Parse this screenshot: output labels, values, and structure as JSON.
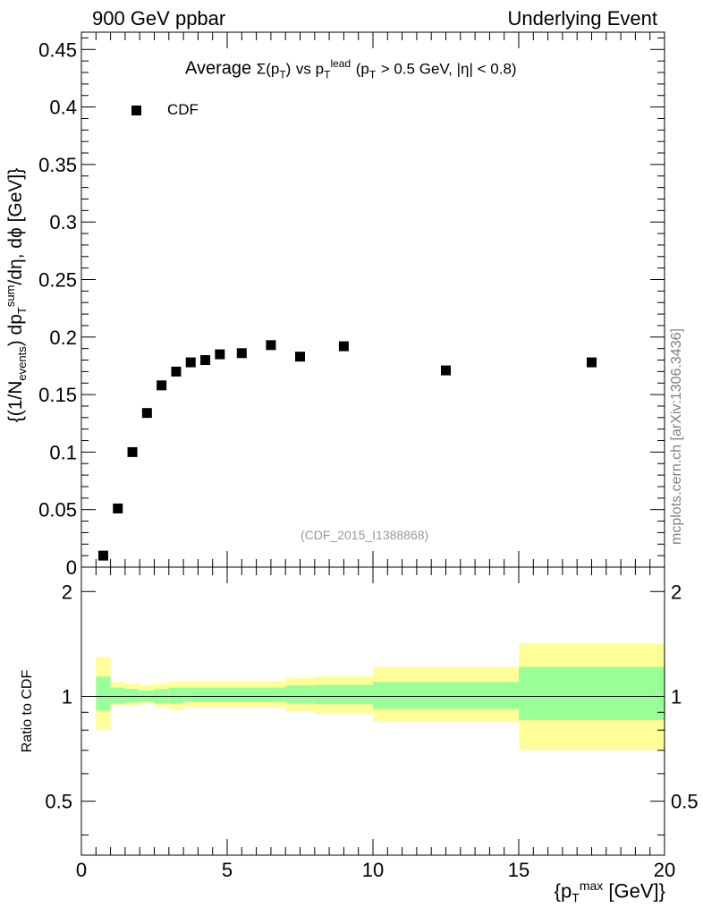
{
  "header": {
    "left": "900 GeV ppbar",
    "right": "Underlying Event"
  },
  "title": {
    "main": "Average",
    "sigma": "Σ(p",
    "sigma_sub": "T",
    "sigma_close": ")",
    "vs": "vs p",
    "vs_sub": "T",
    "vs_sup": "lead",
    "cut_open": "(p",
    "cut_sub": "T",
    "cut_rest": "> 0.5 GeV, |η| < 0.8)"
  },
  "ylabel": {
    "part1": "{(1/N",
    "part1_sub": "events",
    "part2": ") dp",
    "part2_sub": "T",
    "part2_sup": "sum",
    "part3": "/dη, dϕ [GeV]}"
  },
  "ratio_ylabel": "Ratio to CDF",
  "xlabel": {
    "open": "{p",
    "sub": "T",
    "sup": "max",
    "close": "[GeV]}"
  },
  "side_note": "mcplots.cern.ch [arXiv:1306.3436]",
  "analysis_tag": "(CDF_2015_I1388868)",
  "legend": {
    "label": "CDF"
  },
  "colors": {
    "marker": "#000000",
    "band_inner": "#99ff99",
    "band_outer": "#ffff99",
    "analysis_tag": "#999999",
    "side_note": "#808080"
  },
  "chart_data": [
    {
      "type": "scatter",
      "panel": "main",
      "x": [
        0.75,
        1.25,
        1.75,
        2.25,
        2.75,
        3.25,
        3.75,
        4.25,
        4.75,
        5.5,
        6.5,
        7.5,
        9.0,
        12.5,
        17.5
      ],
      "series": [
        {
          "name": "CDF",
          "values": [
            0.01,
            0.051,
            0.1,
            0.134,
            0.158,
            0.17,
            0.178,
            0.18,
            0.185,
            0.186,
            0.193,
            0.183,
            0.192,
            0.171,
            0.178
          ]
        }
      ],
      "xlim": [
        0,
        20
      ],
      "ylim": [
        0,
        0.465
      ],
      "yticks": [
        "0",
        "0.05",
        "0.1",
        "0.15",
        "0.2",
        "0.25",
        "0.3",
        "0.35",
        "0.4",
        "0.45"
      ],
      "legend": "top-left",
      "grid": false
    },
    {
      "type": "area",
      "panel": "ratio",
      "reference_line": 1,
      "scale": "log",
      "ylim": [
        0.35,
        2.35
      ],
      "xlim": [
        0,
        20
      ],
      "xticks": [
        "0",
        "5",
        "10",
        "15",
        "20"
      ],
      "yticks": [
        "0.5",
        "1",
        "2"
      ],
      "bins": [
        {
          "x": [
            0.5,
            1.0
          ],
          "inner": [
            0.91,
            1.14
          ],
          "outer": [
            0.8,
            1.3
          ]
        },
        {
          "x": [
            1.0,
            1.5
          ],
          "inner": [
            0.955,
            1.06
          ],
          "outer": [
            0.94,
            1.1
          ]
        },
        {
          "x": [
            1.5,
            2.0
          ],
          "inner": [
            0.96,
            1.05
          ],
          "outer": [
            0.945,
            1.09
          ]
        },
        {
          "x": [
            2.0,
            2.5
          ],
          "inner": [
            0.965,
            1.04
          ],
          "outer": [
            0.95,
            1.08
          ]
        },
        {
          "x": [
            2.5,
            3.0
          ],
          "inner": [
            0.955,
            1.05
          ],
          "outer": [
            0.93,
            1.09
          ]
        },
        {
          "x": [
            3.0,
            3.5
          ],
          "inner": [
            0.955,
            1.06
          ],
          "outer": [
            0.915,
            1.105
          ]
        },
        {
          "x": [
            3.5,
            5.0
          ],
          "inner": [
            0.965,
            1.06
          ],
          "outer": [
            0.93,
            1.105
          ]
        },
        {
          "x": [
            5.0,
            7.0
          ],
          "inner": [
            0.965,
            1.06
          ],
          "outer": [
            0.93,
            1.105
          ]
        },
        {
          "x": [
            7.0,
            8.0
          ],
          "inner": [
            0.955,
            1.075
          ],
          "outer": [
            0.905,
            1.13
          ]
        },
        {
          "x": [
            8.0,
            10.0
          ],
          "inner": [
            0.95,
            1.08
          ],
          "outer": [
            0.89,
            1.14
          ]
        },
        {
          "x": [
            10.0,
            15.0
          ],
          "inner": [
            0.92,
            1.1
          ],
          "outer": [
            0.845,
            1.215
          ]
        },
        {
          "x": [
            15.0,
            20.0
          ],
          "inner": [
            0.855,
            1.215
          ],
          "outer": [
            0.7,
            1.42
          ]
        }
      ]
    }
  ]
}
